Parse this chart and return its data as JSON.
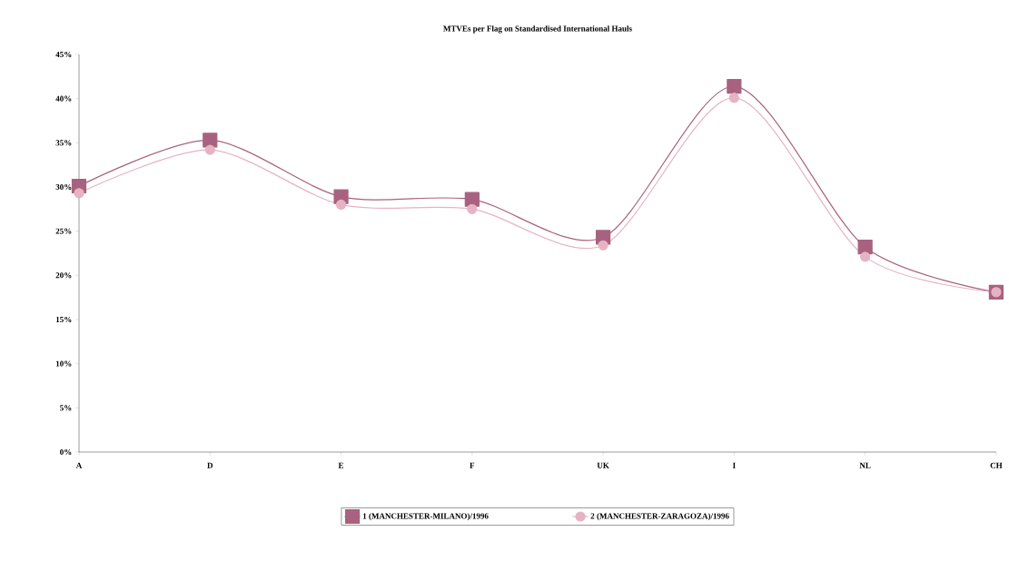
{
  "chart_data": {
    "type": "line",
    "title": "MTVEs per Flag on Standardised International Hauls",
    "categories": [
      "A",
      "D",
      "E",
      "F",
      "UK",
      "I",
      "NL",
      "CH"
    ],
    "series": [
      {
        "name": "1 (MANCHESTER-MILANO)/1996",
        "color": "#a8627f",
        "marker": "square",
        "values": [
          30.1,
          35.3,
          28.9,
          28.6,
          24.3,
          41.4,
          23.2,
          18.1
        ]
      },
      {
        "name": "2 (MANCHESTER-ZARAGOZA)/1996",
        "color": "#e6b3c3",
        "marker": "circle",
        "values": [
          29.3,
          34.2,
          28.0,
          27.5,
          23.4,
          40.1,
          22.1,
          18.1
        ]
      }
    ],
    "ylim": [
      0,
      45
    ],
    "yticks": [
      {
        "value": 0,
        "label": "0%"
      },
      {
        "value": 5,
        "label": "5%"
      },
      {
        "value": 10,
        "label": "10%"
      },
      {
        "value": 15,
        "label": "15%"
      },
      {
        "value": 20,
        "label": "20%"
      },
      {
        "value": 25,
        "label": "25%"
      },
      {
        "value": 30,
        "label": "30%"
      },
      {
        "value": 35,
        "label": "35%"
      },
      {
        "value": 40,
        "label": "40%"
      },
      {
        "value": 45,
        "label": "45%"
      }
    ],
    "legend": "bottom",
    "grid": false,
    "line_style": "solid"
  }
}
